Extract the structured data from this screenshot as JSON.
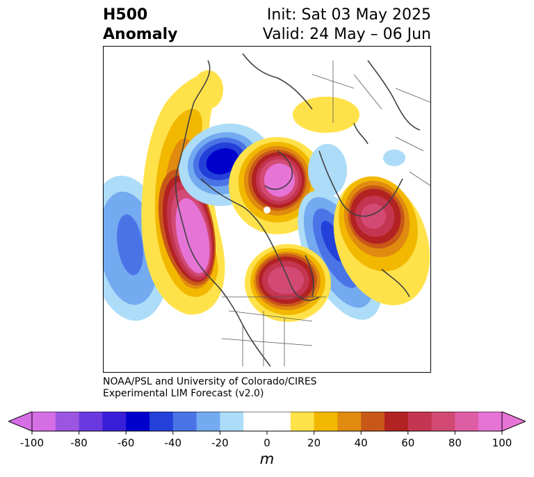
{
  "header": {
    "title_line1": "H500",
    "title_line2": "Anomaly",
    "init_text": "Init: Sat 03 May 2025",
    "valid_text": "Valid: 24 May – 06 Jun"
  },
  "credit": {
    "line1": "NOAA/PSL and University of Colorado/CIRES",
    "line2": "Experimental LIM Forecast (v2.0)"
  },
  "colorbar": {
    "label": "m",
    "ticks": [
      "-100",
      "-80",
      "-60",
      "-40",
      "-20",
      "0",
      "20",
      "40",
      "60",
      "80",
      "100"
    ],
    "colors": [
      "#d66ee6",
      "#9c55e0",
      "#6a3ae0",
      "#3a1fd8",
      "#0000cc",
      "#2340d8",
      "#4a74e6",
      "#73aaf0",
      "#acdcf8",
      "#ffffff",
      "#ffffff",
      "#ffe24a",
      "#f2b800",
      "#e08a10",
      "#c85818",
      "#b22222",
      "#c33550",
      "#d24a74",
      "#de5ea6",
      "#e674d6"
    ],
    "under_color": "#d66ee6",
    "over_color": "#e674d6"
  },
  "palette": {
    "coast": "#404040",
    "border": "#555555"
  }
}
